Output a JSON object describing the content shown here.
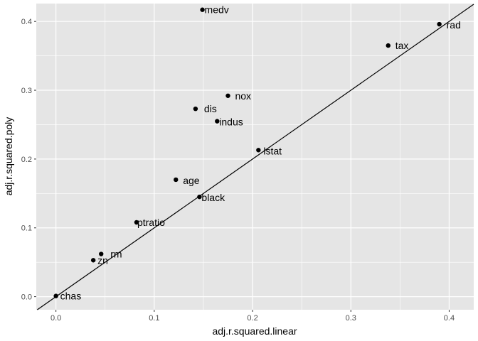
{
  "chart_data": {
    "type": "scatter",
    "xlabel": "adj.r.squared.linear",
    "ylabel": "adj.r.squared.poly",
    "xlim": [
      -0.02,
      0.425
    ],
    "ylim": [
      -0.019,
      0.426
    ],
    "x_ticks": [
      {
        "value": 0.0,
        "label": "0.0"
      },
      {
        "value": 0.1,
        "label": "0.1"
      },
      {
        "value": 0.2,
        "label": "0.2"
      },
      {
        "value": 0.3,
        "label": "0.3"
      },
      {
        "value": 0.4,
        "label": "0.4"
      }
    ],
    "y_ticks": [
      {
        "value": 0.0,
        "label": "0.0"
      },
      {
        "value": 0.1,
        "label": "0.1"
      },
      {
        "value": 0.2,
        "label": "0.2"
      },
      {
        "value": 0.3,
        "label": "0.3"
      },
      {
        "value": 0.4,
        "label": "0.4"
      }
    ],
    "reference_line": {
      "slope": 1,
      "intercept": 0
    },
    "grid": true,
    "background": "#e5e5e5",
    "gridline_color": "#ffffff",
    "point_color": "#000000",
    "points": [
      {
        "label": "medv",
        "x": 0.149,
        "y": 0.417
      },
      {
        "label": "rad",
        "x": 0.39,
        "y": 0.396
      },
      {
        "label": "tax",
        "x": 0.338,
        "y": 0.365
      },
      {
        "label": "nox",
        "x": 0.175,
        "y": 0.292
      },
      {
        "label": "dis",
        "x": 0.142,
        "y": 0.273
      },
      {
        "label": "indus",
        "x": 0.164,
        "y": 0.255
      },
      {
        "label": "lstat",
        "x": 0.206,
        "y": 0.213
      },
      {
        "label": "age",
        "x": 0.122,
        "y": 0.17
      },
      {
        "label": "black",
        "x": 0.146,
        "y": 0.145
      },
      {
        "label": "ptratio",
        "x": 0.082,
        "y": 0.108
      },
      {
        "label": "rm",
        "x": 0.046,
        "y": 0.062
      },
      {
        "label": "zn",
        "x": 0.038,
        "y": 0.053
      },
      {
        "label": "chas",
        "x": 0.0,
        "y": 0.001
      }
    ]
  }
}
